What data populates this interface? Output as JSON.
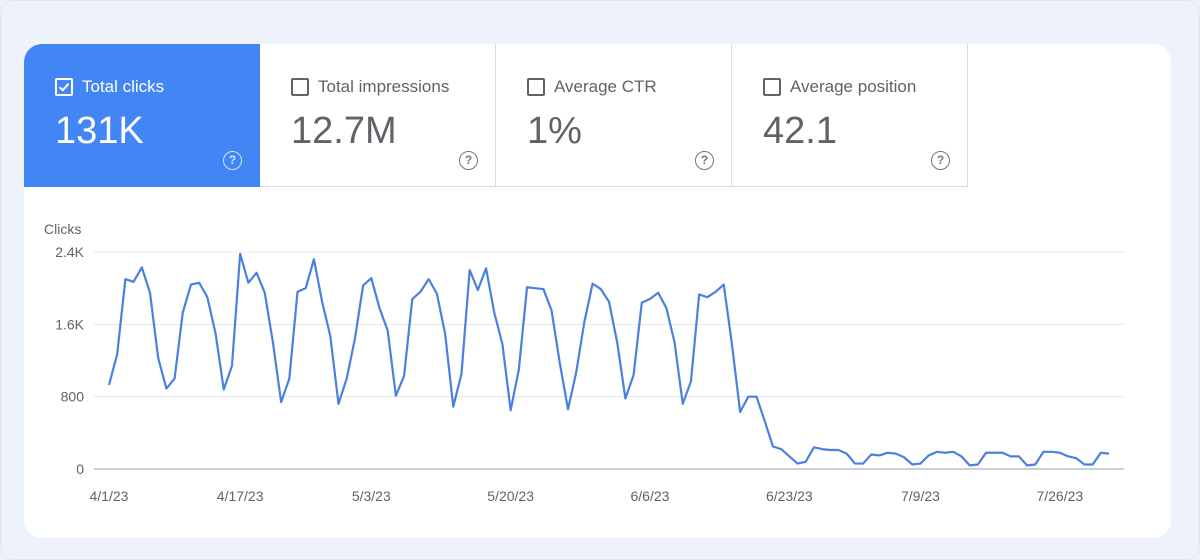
{
  "metrics": [
    {
      "label": "Total clicks",
      "value": "131K",
      "selected": true
    },
    {
      "label": "Total impressions",
      "value": "12.7M",
      "selected": false
    },
    {
      "label": "Average CTR",
      "value": "1%",
      "selected": false
    },
    {
      "label": "Average position",
      "value": "42.1",
      "selected": false
    }
  ],
  "help_symbol": "?",
  "colors": {
    "accent": "#4285f4",
    "line": "#4a80e0",
    "grid": "#e6e8eb"
  },
  "chart_data": {
    "type": "line",
    "ylabel": "Clicks",
    "ylim": [
      0,
      2400
    ],
    "yticks": [
      0,
      800,
      1600,
      2400
    ],
    "ytick_labels": [
      "0",
      "800",
      "1.6K",
      "2.4K"
    ],
    "xticks": [
      0,
      16,
      32,
      49,
      66,
      83,
      99,
      116
    ],
    "xtick_labels": [
      "4/1/23",
      "4/17/23",
      "5/3/23",
      "5/20/23",
      "6/6/23",
      "6/23/23",
      "7/9/23",
      "7/26/23"
    ],
    "series": [
      {
        "name": "Total clicks",
        "values": [
          930,
          1270,
          2100,
          2070,
          2230,
          1950,
          1230,
          890,
          1000,
          1730,
          2040,
          2060,
          1900,
          1500,
          880,
          1140,
          2380,
          2060,
          2170,
          1950,
          1400,
          740,
          1000,
          1960,
          2000,
          2320,
          1850,
          1470,
          720,
          1000,
          1440,
          2030,
          2110,
          1780,
          1530,
          810,
          1030,
          1880,
          1960,
          2100,
          1940,
          1500,
          690,
          1050,
          2200,
          1980,
          2220,
          1730,
          1380,
          650,
          1100,
          2010,
          2000,
          1990,
          1750,
          1170,
          660,
          1070,
          1630,
          2050,
          1990,
          1850,
          1400,
          780,
          1040,
          1840,
          1880,
          1950,
          1780,
          1400,
          720,
          970,
          1930,
          1900,
          1960,
          2040,
          1380,
          630,
          800,
          800,
          530,
          250,
          220,
          140,
          60,
          80,
          240,
          220,
          210,
          210,
          170,
          60,
          60,
          160,
          150,
          180,
          170,
          130,
          50,
          60,
          150,
          190,
          180,
          190,
          140,
          40,
          50,
          180,
          180,
          180,
          140,
          140,
          40,
          50,
          190,
          190,
          180,
          140,
          120,
          50,
          50,
          180,
          170
        ]
      }
    ]
  }
}
